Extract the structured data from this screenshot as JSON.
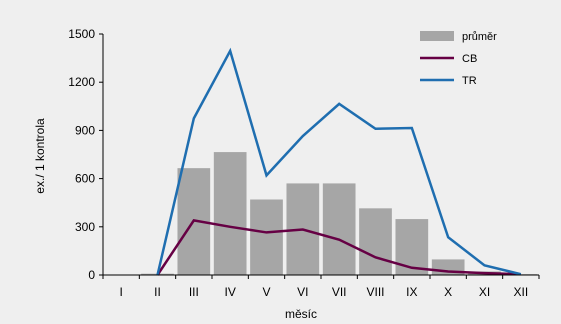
{
  "chart_data": {
    "type": "bar",
    "categories": [
      "I",
      "II",
      "III",
      "IV",
      "V",
      "VI",
      "VII",
      "VIII",
      "IX",
      "X",
      "XI",
      "XII"
    ],
    "xlabel": "měsíc",
    "ylabel": "ex./ 1 kontrola",
    "ylim": [
      0,
      1500
    ],
    "yticks": [
      0,
      300,
      600,
      900,
      1200,
      1500
    ],
    "grid": false,
    "legend_position": "top-right",
    "series": [
      {
        "name": "průměr",
        "kind": "bar",
        "color": "#a6a6a6",
        "values": [
          0,
          8,
          665,
          765,
          470,
          570,
          570,
          415,
          348,
          97,
          22,
          5
        ]
      },
      {
        "name": "CB",
        "kind": "line",
        "color": "#660044",
        "values": [
          null,
          0,
          340,
          300,
          265,
          283,
          220,
          110,
          45,
          22,
          12,
          5
        ]
      },
      {
        "name": "TR",
        "kind": "line",
        "color": "#1f6eb0",
        "values": [
          null,
          0,
          975,
          1395,
          620,
          865,
          1065,
          910,
          915,
          235,
          60,
          5
        ]
      }
    ]
  }
}
